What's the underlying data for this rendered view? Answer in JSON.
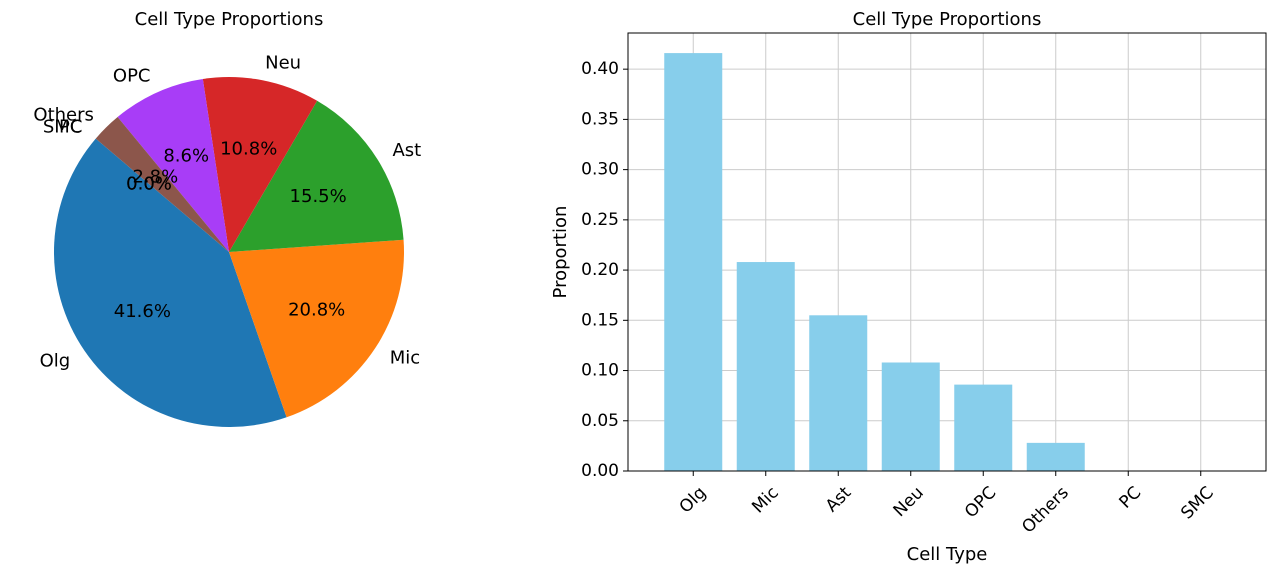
{
  "chart_data": [
    {
      "type": "pie",
      "title": "Cell Type Proportions",
      "categories": [
        "Olg",
        "Mic",
        "Ast",
        "Neu",
        "OPC",
        "Others",
        "PC",
        "SMC"
      ],
      "values": [
        0.416,
        0.208,
        0.155,
        0.108,
        0.086,
        0.028,
        0.0,
        0.0
      ],
      "percent_labels": [
        "41.6%",
        "20.8%",
        "15.5%",
        "10.8%",
        "8.6%",
        "2.8%",
        "0.0%",
        "0.0%"
      ],
      "colors": [
        "#1f77b4",
        "#ff7f0e",
        "#2ca02c",
        "#d62728",
        "#a83df7",
        "#8c564b",
        "#e377c2",
        "#7f7f7f"
      ],
      "start_angle_deg": 139.6,
      "direction": "counterclockwise"
    },
    {
      "type": "bar",
      "title": "Cell Type Proportions",
      "categories": [
        "Olg",
        "Mic",
        "Ast",
        "Neu",
        "OPC",
        "Others",
        "PC",
        "SMC"
      ],
      "values": [
        0.416,
        0.208,
        0.155,
        0.108,
        0.086,
        0.028,
        0.0,
        0.0
      ],
      "bar_color": "#87ceeb",
      "xlabel": "Cell Type",
      "ylabel": "Proportion",
      "ylim": [
        0,
        0.436
      ],
      "yticks": [
        0.0,
        0.05,
        0.1,
        0.15,
        0.2,
        0.25,
        0.3,
        0.35,
        0.4
      ],
      "ytick_labels": [
        "0.00",
        "0.05",
        "0.10",
        "0.15",
        "0.20",
        "0.25",
        "0.30",
        "0.35",
        "0.40"
      ],
      "grid": true
    }
  ]
}
